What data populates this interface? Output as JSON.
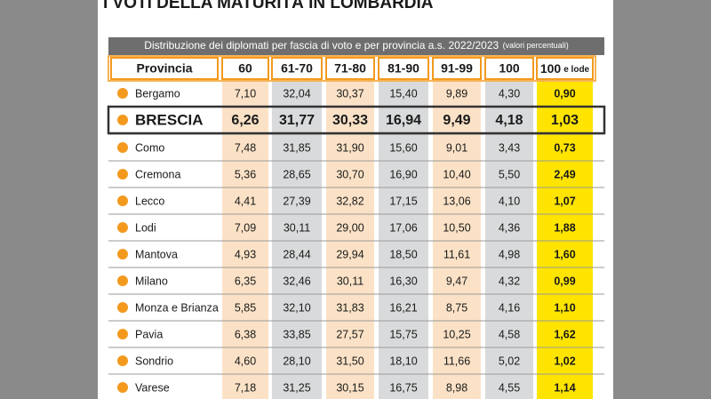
{
  "title": "I VOTI DELLA MATURITÀ IN LOMBARDIA",
  "table": {
    "caption": "Distribuzione dei diplomati per fascia di voto e per provincia a.s. 2022/2023",
    "caption_note": "(valori percentuali)",
    "columns": [
      "Provincia",
      "60",
      "61-70",
      "71-80",
      "81-90",
      "91-99",
      "100"
    ],
    "last_column": {
      "main": "100",
      "note": "e lode"
    },
    "rows": [
      [
        "Bergamo",
        "7,10",
        "32,04",
        "30,37",
        "15,40",
        "9,89",
        "4,30",
        "0,90"
      ],
      [
        "BRESCIA",
        "6,26",
        "31,77",
        "30,33",
        "16,94",
        "9,49",
        "4,18",
        "1,03"
      ],
      [
        "Como",
        "7,48",
        "31,85",
        "31,90",
        "15,60",
        "9,01",
        "3,43",
        "0,73"
      ],
      [
        "Cremona",
        "5,36",
        "28,65",
        "30,70",
        "16,90",
        "10,40",
        "5,50",
        "2,49"
      ],
      [
        "Lecco",
        "4,41",
        "27,39",
        "32,82",
        "17,15",
        "13,06",
        "4,10",
        "1,07"
      ],
      [
        "Lodi",
        "7,09",
        "30,11",
        "29,00",
        "17,06",
        "10,50",
        "4,36",
        "1,88"
      ],
      [
        "Mantova",
        "4,93",
        "28,44",
        "29,94",
        "18,50",
        "11,61",
        "4,98",
        "1,60"
      ],
      [
        "Milano",
        "6,35",
        "32,46",
        "30,11",
        "16,30",
        "9,47",
        "4,32",
        "0,99"
      ],
      [
        "Monza e Brianza",
        "5,85",
        "32,10",
        "31,83",
        "16,21",
        "8,75",
        "4,16",
        "1,10"
      ],
      [
        "Pavia",
        "6,38",
        "33,85",
        "27,57",
        "15,75",
        "10,25",
        "4,58",
        "1,62"
      ],
      [
        "Sondrio",
        "4,60",
        "28,10",
        "31,50",
        "18,10",
        "11,66",
        "5,02",
        "1,02"
      ],
      [
        "Varese",
        "7,18",
        "31,25",
        "30,15",
        "16,75",
        "8,98",
        "4,55",
        "1,14"
      ]
    ]
  }
}
